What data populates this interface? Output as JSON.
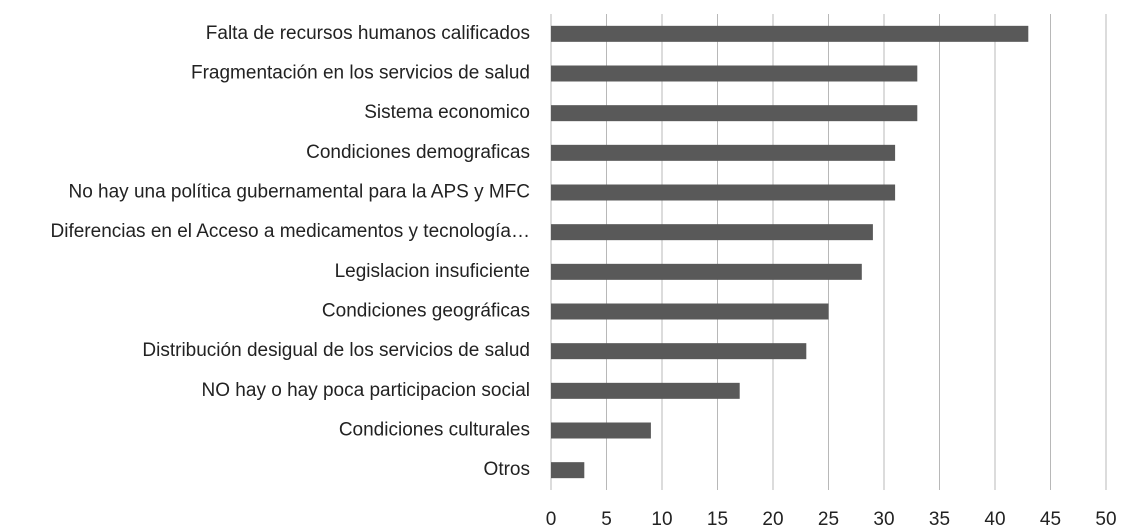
{
  "chart_data": {
    "type": "barh",
    "categories": [
      "Falta de recursos humanos calificados",
      "Fragmentación en los servicios de salud",
      "Sistema economico",
      "Condiciones demograficas",
      "No hay una política gubernamental para la APS y MFC",
      "Diferencias en el Acceso a medicamentos y tecnología…",
      "Legislacion insuficiente",
      "Condiciones geográficas",
      "Distribución desigual de los servicios de salud",
      "NO hay o hay poca participacion social",
      "Condiciones culturales",
      "Otros"
    ],
    "values": [
      43,
      33,
      33,
      31,
      31,
      29,
      28,
      25,
      23,
      17,
      9,
      3
    ],
    "color": "#595959",
    "xlim": [
      0,
      50
    ],
    "xticks": [
      0,
      5,
      10,
      15,
      20,
      25,
      30,
      35,
      40,
      45,
      50
    ],
    "grid": true
  }
}
